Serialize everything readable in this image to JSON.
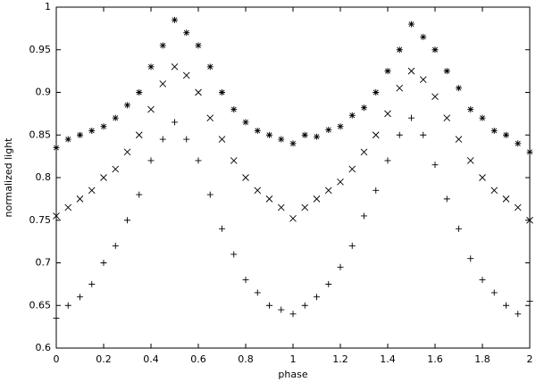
{
  "chart_data": {
    "type": "scatter",
    "xlabel": "phase",
    "ylabel": "normalized light",
    "xlim": [
      0,
      2
    ],
    "ylim": [
      0.6,
      1
    ],
    "xticks": [
      0,
      0.2,
      0.4,
      0.6,
      0.8,
      1,
      1.2,
      1.4,
      1.6,
      1.8,
      2
    ],
    "yticks": [
      0.6,
      0.65,
      0.7,
      0.75,
      0.8,
      0.85,
      0.9,
      0.95,
      1
    ],
    "x": [
      0,
      0.05,
      0.1,
      0.15,
      0.2,
      0.25,
      0.3,
      0.35,
      0.4,
      0.45,
      0.5,
      0.55,
      0.6,
      0.65,
      0.7,
      0.75,
      0.8,
      0.85,
      0.9,
      0.95,
      1,
      1.05,
      1.1,
      1.15,
      1.2,
      1.25,
      1.3,
      1.35,
      1.4,
      1.45,
      1.5,
      1.55,
      1.6,
      1.65,
      1.7,
      1.75,
      1.8,
      1.85,
      1.9,
      1.95,
      2
    ],
    "series": [
      {
        "color": "#000000",
        "marker": "star",
        "values": [
          0.835,
          0.845,
          0.85,
          0.855,
          0.86,
          0.87,
          0.885,
          0.9,
          0.93,
          0.955,
          0.985,
          0.97,
          0.955,
          0.93,
          0.9,
          0.88,
          0.865,
          0.855,
          0.85,
          0.845,
          0.84,
          0.85,
          0.848,
          0.856,
          0.86,
          0.873,
          0.882,
          0.9,
          0.925,
          0.95,
          0.98,
          0.965,
          0.95,
          0.925,
          0.905,
          0.88,
          0.87,
          0.855,
          0.85,
          0.84,
          0.83
        ]
      },
      {
        "color": "#000000",
        "marker": "x",
        "values": [
          0.755,
          0.765,
          0.775,
          0.785,
          0.8,
          0.81,
          0.83,
          0.85,
          0.88,
          0.91,
          0.93,
          0.92,
          0.9,
          0.87,
          0.845,
          0.82,
          0.8,
          0.785,
          0.775,
          0.765,
          0.752,
          0.765,
          0.775,
          0.785,
          0.795,
          0.81,
          0.83,
          0.85,
          0.875,
          0.905,
          0.925,
          0.915,
          0.895,
          0.87,
          0.845,
          0.82,
          0.8,
          0.785,
          0.775,
          0.765,
          0.75
        ]
      },
      {
        "color": "#000000",
        "marker": "plus",
        "values": [
          0.635,
          0.65,
          0.66,
          0.675,
          0.7,
          0.72,
          0.75,
          0.78,
          0.82,
          0.845,
          0.865,
          0.845,
          0.82,
          0.78,
          0.74,
          0.71,
          0.68,
          0.665,
          0.65,
          0.645,
          0.64,
          0.65,
          0.66,
          0.675,
          0.695,
          0.72,
          0.755,
          0.785,
          0.82,
          0.85,
          0.87,
          0.85,
          0.815,
          0.775,
          0.74,
          0.705,
          0.68,
          0.665,
          0.65,
          0.64,
          0.655
        ]
      }
    ]
  }
}
